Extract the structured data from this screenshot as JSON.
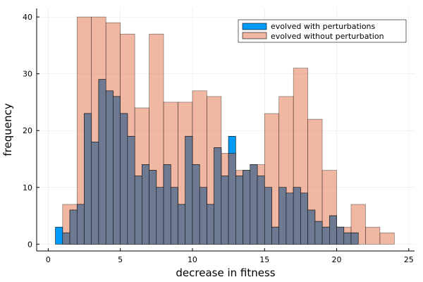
{
  "chart_data": {
    "type": "bar",
    "title": "",
    "xlabel": "decrease in fitness",
    "ylabel": "frequency",
    "xlim": [
      -0.8,
      25.4
    ],
    "ylim": [
      -1.2,
      41.5
    ],
    "x_ticks": [
      0,
      5,
      10,
      15,
      20,
      25
    ],
    "y_ticks": [
      0,
      10,
      20,
      30,
      40
    ],
    "grid": true,
    "legend_position": "top-right",
    "series": [
      {
        "name": "evolved without perturbation",
        "color": "#e26f46",
        "opacity": 0.5,
        "bin_edges": [
          1,
          2,
          3,
          4,
          5,
          6,
          7,
          8,
          9,
          10,
          11,
          12,
          13,
          14,
          15,
          16,
          17,
          18,
          19,
          20,
          21,
          22,
          23,
          24
        ],
        "values": [
          7,
          40,
          40,
          39,
          37,
          24,
          37,
          25,
          25,
          27,
          26,
          16,
          13,
          14,
          23,
          26,
          31,
          22,
          13,
          3,
          7,
          3,
          2
        ]
      },
      {
        "name": "evolved with perturbations",
        "color": "#009af9",
        "opacity": 1,
        "bin_edges": [
          0.5,
          1.0,
          1.5,
          2.0,
          2.5,
          3.0,
          3.5,
          4.0,
          4.5,
          5.0,
          5.5,
          6.0,
          6.5,
          7.0,
          7.5,
          8.0,
          8.5,
          9.0,
          9.5,
          10.0,
          10.5,
          11.0,
          11.5,
          12.0,
          12.5,
          13.0,
          13.5,
          14.0,
          14.5,
          15.0,
          15.5,
          16.0,
          16.5,
          17.0,
          17.5,
          18.0,
          18.5,
          19.0,
          19.5,
          20.0,
          20.5,
          21.0,
          21.5
        ],
        "values": [
          3,
          2,
          6,
          7,
          23,
          18,
          29,
          27,
          26,
          23,
          19,
          12,
          14,
          13,
          10,
          14,
          10,
          7,
          19,
          14,
          10,
          7,
          17,
          12,
          19,
          12,
          13,
          14,
          12,
          10,
          3,
          10,
          9,
          10,
          9,
          6,
          4,
          3,
          5,
          3,
          2,
          2
        ]
      }
    ],
    "legend_order": [
      "evolved with perturbations",
      "evolved without perturbation"
    ]
  }
}
